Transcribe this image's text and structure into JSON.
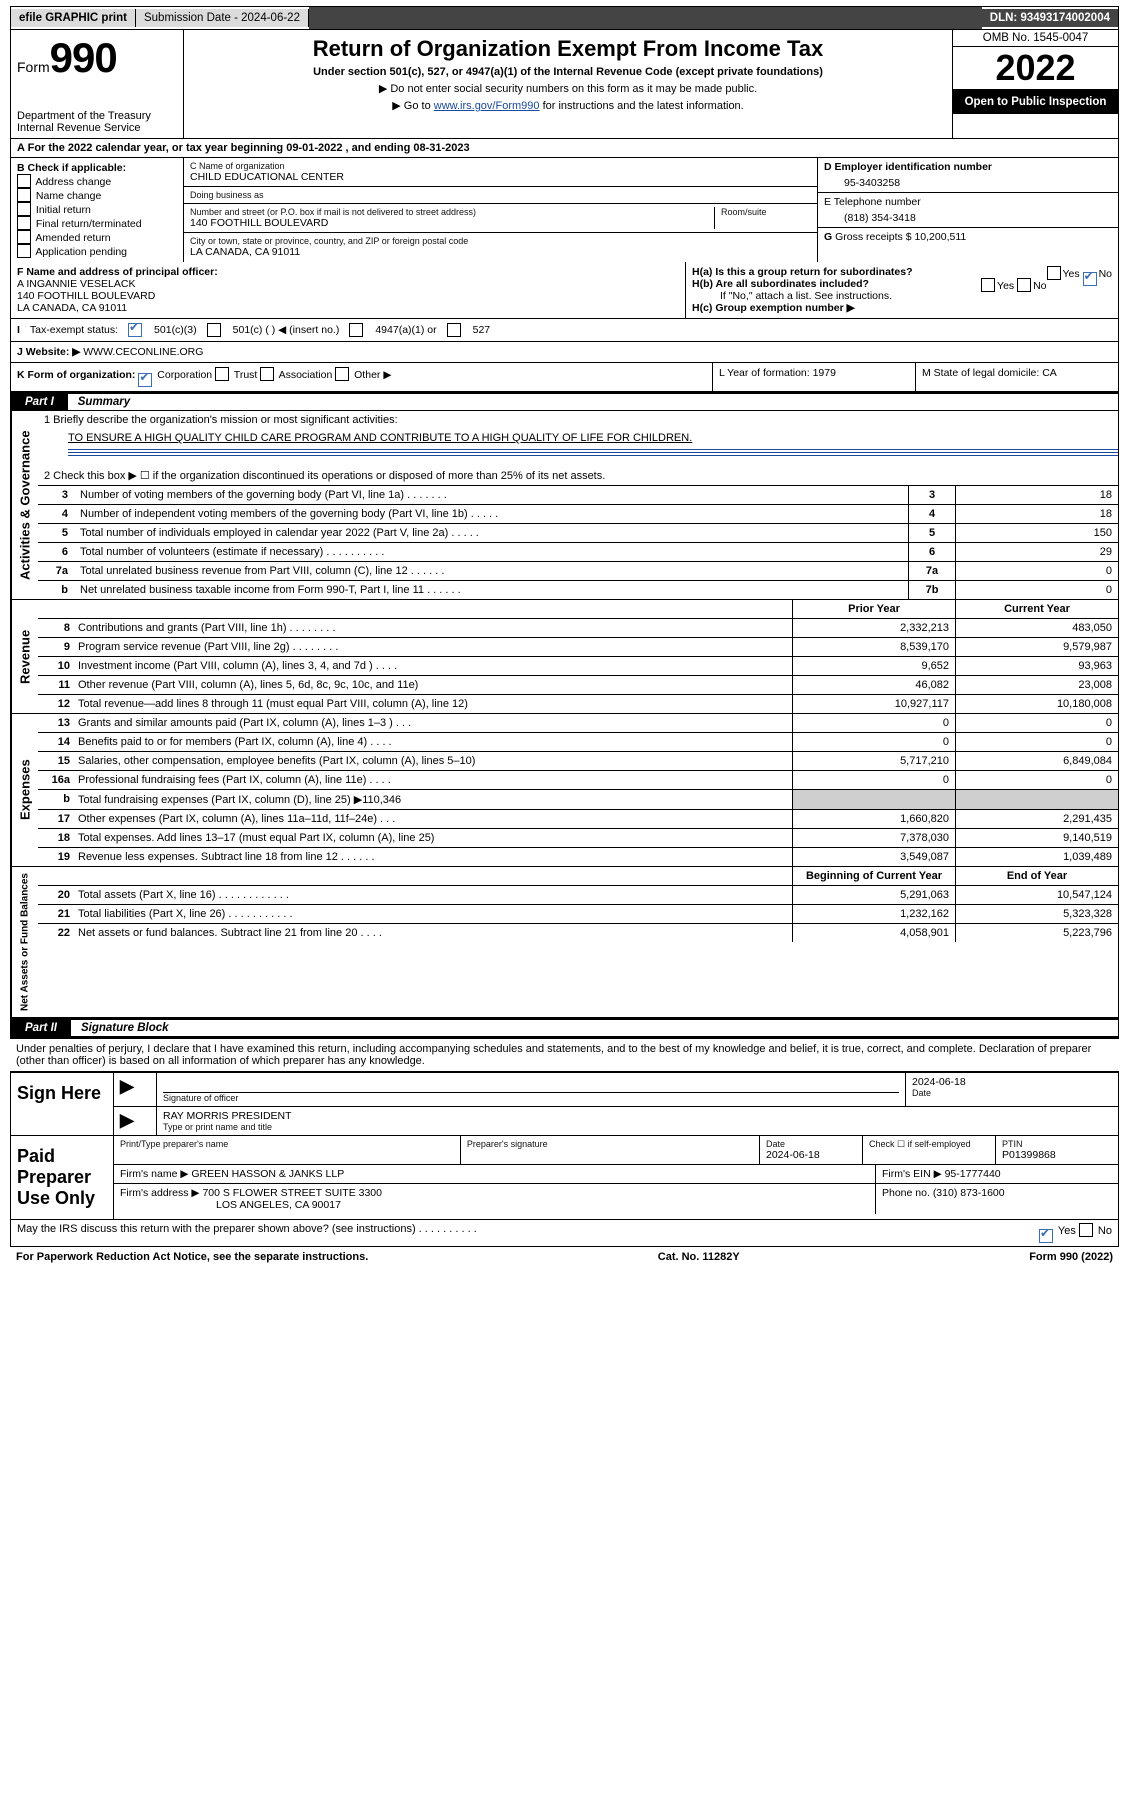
{
  "topbar": {
    "efile": "efile GRAPHIC print",
    "submission_label": "Submission Date - 2024-06-22",
    "dln": "DLN: 93493174002004"
  },
  "header": {
    "form_label": "Form",
    "form_num": "990",
    "dept": "Department of the Treasury\nInternal Revenue Service",
    "title": "Return of Organization Exempt From Income Tax",
    "sub1": "Under section 501(c), 527, or 4947(a)(1) of the Internal Revenue Code (except private foundations)",
    "sub2": "▶ Do not enter social security numbers on this form as it may be made public.",
    "sub3_pre": "▶ Go to ",
    "sub3_link": "www.irs.gov/Form990",
    "sub3_post": " for instructions and the latest information.",
    "omb": "OMB No. 1545-0047",
    "year": "2022",
    "open": "Open to Public Inspection"
  },
  "taxyear": "For the 2022 calendar year, or tax year beginning 09-01-2022   , and ending 08-31-2023",
  "boxB": {
    "title": "B Check if applicable:",
    "items": [
      "Address change",
      "Name change",
      "Initial return",
      "Final return/terminated",
      "Amended return",
      "Application pending"
    ]
  },
  "org": {
    "c_label": "C Name of organization",
    "name": "CHILD EDUCATIONAL CENTER",
    "dba_label": "Doing business as",
    "dba": "",
    "street_label": "Number and street (or P.O. box if mail is not delivered to street address)",
    "room_label": "Room/suite",
    "street": "140 FOOTHILL BOULEVARD",
    "city_label": "City or town, state or province, country, and ZIP or foreign postal code",
    "city": "LA CANADA, CA  91011"
  },
  "boxD": {
    "label": "D Employer identification number",
    "value": "95-3403258"
  },
  "boxE": {
    "label": "E Telephone number",
    "value": "(818) 354-3418"
  },
  "boxG": {
    "label": "G",
    "text": "Gross receipts $ 10,200,511"
  },
  "boxF": {
    "label": "F Name and address of principal officer:",
    "line1": "A INGANNIE VESELACK",
    "line2": "140 FOOTHILL BOULEVARD",
    "line3": "LA CANADA, CA  91011"
  },
  "boxH": {
    "a": "H(a)  Is this a group return for subordinates?",
    "b": "H(b)  Are all subordinates included?",
    "b_note": "If \"No,\" attach a list. See instructions.",
    "c": "H(c)  Group exemption number ▶"
  },
  "rowI": {
    "label": "Tax-exempt status:",
    "opts": [
      "501(c)(3)",
      "501(c) (  ) ◀ (insert no.)",
      "4947(a)(1) or",
      "527"
    ]
  },
  "rowJ": {
    "label": "Website: ▶",
    "value": "WWW.CECONLINE.ORG"
  },
  "rowK": {
    "label": "K Form of organization:",
    "opts": [
      "Corporation",
      "Trust",
      "Association",
      "Other ▶"
    ]
  },
  "rowL": {
    "label": "L Year of formation: 1979"
  },
  "rowM": {
    "label": "M State of legal domicile: CA"
  },
  "part1": {
    "num": "Part I",
    "title": "Summary"
  },
  "summary": {
    "l1a": "1   Briefly describe the organization's mission or most significant activities:",
    "l1b": "TO ENSURE A HIGH QUALITY CHILD CARE PROGRAM AND CONTRIBUTE TO A HIGH QUALITY OF LIFE FOR CHILDREN.",
    "l2": "2   Check this box ▶ ☐  if the organization discontinued its operations or disposed of more than 25% of its net assets.",
    "rows": [
      {
        "n": "3",
        "t": "Number of voting members of the governing body (Part VI, line 1a)  .    .    .    .    .    .    .",
        "lab": "3",
        "v": "18"
      },
      {
        "n": "4",
        "t": "Number of independent voting members of the governing body (Part VI, line 1b)  .    .    .    .    .",
        "lab": "4",
        "v": "18"
      },
      {
        "n": "5",
        "t": "Total number of individuals employed in calendar year 2022 (Part V, line 2a)  .    .    .    .    .",
        "lab": "5",
        "v": "150"
      },
      {
        "n": "6",
        "t": "Total number of volunteers (estimate if necessary)  .    .    .    .    .    .    .    .    .    .",
        "lab": "6",
        "v": "29"
      },
      {
        "n": "7a",
        "t": "Total unrelated business revenue from Part VIII, column (C), line 12  .    .    .    .    .    .",
        "lab": "7a",
        "v": "0"
      },
      {
        "n": "b",
        "t": "Net unrelated business taxable income from Form 990-T, Part I, line 11  .    .    .    .    .    .",
        "lab": "7b",
        "v": "0"
      }
    ]
  },
  "fin": {
    "head_prior": "Prior Year",
    "head_curr": "Current Year",
    "revenue_tab": "Revenue",
    "expense_tab": "Expenses",
    "net_tab": "Net Assets or Fund Balances",
    "gov_tab": "Activities & Governance",
    "revenue": [
      {
        "n": "8",
        "t": "Contributions and grants (Part VIII, line 1h)  .    .    .    .    .    .    .    .",
        "p": "2,332,213",
        "c": "483,050"
      },
      {
        "n": "9",
        "t": "Program service revenue (Part VIII, line 2g)  .    .    .    .    .    .    .    .",
        "p": "8,539,170",
        "c": "9,579,987"
      },
      {
        "n": "10",
        "t": "Investment income (Part VIII, column (A), lines 3, 4, and 7d )  .    .    .    .",
        "p": "9,652",
        "c": "93,963"
      },
      {
        "n": "11",
        "t": "Other revenue (Part VIII, column (A), lines 5, 6d, 8c, 9c, 10c, and 11e)",
        "p": "46,082",
        "c": "23,008"
      },
      {
        "n": "12",
        "t": "Total revenue—add lines 8 through 11 (must equal Part VIII, column (A), line 12)",
        "p": "10,927,117",
        "c": "10,180,008"
      }
    ],
    "expenses": [
      {
        "n": "13",
        "t": "Grants and similar amounts paid (Part IX, column (A), lines 1–3 )  .    .    .",
        "p": "0",
        "c": "0"
      },
      {
        "n": "14",
        "t": "Benefits paid to or for members (Part IX, column (A), line 4)  .    .    .    .",
        "p": "0",
        "c": "0"
      },
      {
        "n": "15",
        "t": "Salaries, other compensation, employee benefits (Part IX, column (A), lines 5–10)",
        "p": "5,717,210",
        "c": "6,849,084"
      },
      {
        "n": "16a",
        "t": "Professional fundraising fees (Part IX, column (A), line 11e)  .    .    .    .",
        "p": "0",
        "c": "0"
      },
      {
        "n": "b",
        "t": "Total fundraising expenses (Part IX, column (D), line 25) ▶110,346",
        "gray": true
      },
      {
        "n": "17",
        "t": "Other expenses (Part IX, column (A), lines 11a–11d, 11f–24e)  .    .    .",
        "p": "1,660,820",
        "c": "2,291,435"
      },
      {
        "n": "18",
        "t": "Total expenses. Add lines 13–17 (must equal Part IX, column (A), line 25)",
        "p": "7,378,030",
        "c": "9,140,519"
      },
      {
        "n": "19",
        "t": "Revenue less expenses. Subtract line 18 from line 12  .    .    .    .    .    .",
        "p": "3,549,087",
        "c": "1,039,489"
      }
    ],
    "net_head_prior": "Beginning of Current Year",
    "net_head_curr": "End of Year",
    "net": [
      {
        "n": "20",
        "t": "Total assets (Part X, line 16)  .    .    .    .    .    .    .    .    .    .    .    .",
        "p": "5,291,063",
        "c": "10,547,124"
      },
      {
        "n": "21",
        "t": "Total liabilities (Part X, line 26)  .    .    .    .    .    .    .    .    .    .    .",
        "p": "1,232,162",
        "c": "5,323,328"
      },
      {
        "n": "22",
        "t": "Net assets or fund balances. Subtract line 21 from line 20  .    .    .    .",
        "p": "4,058,901",
        "c": "5,223,796"
      }
    ]
  },
  "part2": {
    "num": "Part II",
    "title": "Signature Block"
  },
  "sig": {
    "decl": "Under penalties of perjury, I declare that I have examined this return, including accompanying schedules and statements, and to the best of my knowledge and belief, it is true, correct, and complete. Declaration of preparer (other than officer) is based on all information of which preparer has any knowledge.",
    "sign_here": "Sign Here",
    "sig_officer": "Signature of officer",
    "date": "2024-06-18",
    "date_lbl": "Date",
    "name": "RAY MORRIS  PRESIDENT",
    "name_lbl": "Type or print name and title"
  },
  "prep": {
    "title": "Paid Preparer Use Only",
    "h1": "Print/Type preparer's name",
    "h2": "Preparer's signature",
    "h3": "Date",
    "h3v": "2024-06-18",
    "h4": "Check ☐ if self-employed",
    "h5": "PTIN",
    "h5v": "P01399868",
    "firm_name_lbl": "Firm's name    ▶",
    "firm_name": "GREEN HASSON & JANKS LLP",
    "firm_ein_lbl": "Firm's EIN ▶",
    "firm_ein": "95-1777440",
    "firm_addr_lbl": "Firm's address ▶",
    "firm_addr1": "700 S FLOWER STREET SUITE 3300",
    "firm_addr2": "LOS ANGELES, CA  90017",
    "phone_lbl": "Phone no.",
    "phone": "(310) 873-1600"
  },
  "footer": {
    "discuss": "May the IRS discuss this return with the preparer shown above? (see instructions)  .    .    .    .    .    .    .    .    .    .",
    "pra": "For Paperwork Reduction Act Notice, see the separate instructions.",
    "cat": "Cat. No. 11282Y",
    "form": "Form 990 (2022)"
  }
}
